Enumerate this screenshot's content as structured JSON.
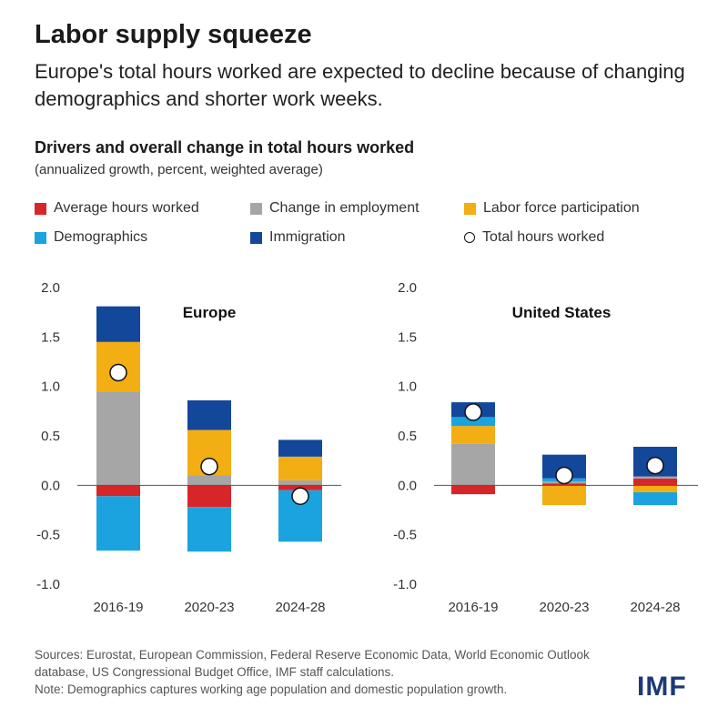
{
  "title": "Labor supply squeeze",
  "subtitle": "Europe's total hours worked are expected to decline because of changing demographics and shorter work weeks.",
  "chart_title": "Drivers and overall change in total hours worked",
  "chart_subtitle": "(annualized growth, percent, weighted average)",
  "legend": [
    {
      "label": "Average hours worked",
      "color": "#d7262a",
      "marker": "square"
    },
    {
      "label": "Change in employment",
      "color": "#a6a6a6",
      "marker": "square"
    },
    {
      "label": "Labor force participation",
      "color": "#f2ae13",
      "marker": "square"
    },
    {
      "label": "Demographics",
      "color": "#1ba3e0",
      "marker": "square"
    },
    {
      "label": "Immigration",
      "color": "#13479a",
      "marker": "square"
    },
    {
      "label": "Total hours worked",
      "color": "#ffffff",
      "marker": "circle"
    }
  ],
  "chart_data": [
    {
      "type": "bar",
      "stacked": true,
      "panel_label": "Europe",
      "categories": [
        "2016-19",
        "2020-23",
        "2024-28"
      ],
      "ylim": [
        -1.0,
        2.0
      ],
      "yticks": [
        "2.0",
        "1.5",
        "1.0",
        "0.5",
        "0.0",
        "-0.5",
        "-1.0"
      ],
      "series": [
        {
          "name": "Average hours worked",
          "color": "#d7262a",
          "values": [
            -0.11,
            -0.22,
            -0.05
          ]
        },
        {
          "name": "Change in employment",
          "color": "#a6a6a6",
          "values": [
            0.95,
            0.1,
            0.05
          ]
        },
        {
          "name": "Labor force participation",
          "color": "#f2ae13",
          "values": [
            0.5,
            0.46,
            0.24
          ]
        },
        {
          "name": "Demographics",
          "color": "#1ba3e0",
          "values": [
            -0.55,
            -0.45,
            -0.52
          ]
        },
        {
          "name": "Immigration",
          "color": "#13479a",
          "values": [
            0.36,
            0.3,
            0.17
          ]
        }
      ],
      "total": {
        "name": "Total hours worked",
        "values": [
          1.14,
          0.19,
          -0.11
        ]
      }
    },
    {
      "type": "bar",
      "stacked": true,
      "panel_label": "United States",
      "categories": [
        "2016-19",
        "2020-23",
        "2024-28"
      ],
      "ylim": [
        -1.0,
        2.0
      ],
      "yticks": [
        "2.0",
        "1.5",
        "1.0",
        "0.5",
        "0.0",
        "-0.5",
        "-1.0"
      ],
      "series": [
        {
          "name": "Average hours worked",
          "color": "#d7262a",
          "values": [
            -0.09,
            0.02,
            0.07
          ]
        },
        {
          "name": "Change in employment",
          "color": "#a6a6a6",
          "values": [
            0.42,
            0.02,
            0.02
          ]
        },
        {
          "name": "Labor force participation",
          "color": "#f2ae13",
          "values": [
            0.18,
            -0.2,
            -0.07
          ]
        },
        {
          "name": "Demographics",
          "color": "#1ba3e0",
          "values": [
            0.09,
            0.03,
            -0.13
          ]
        },
        {
          "name": "Immigration",
          "color": "#13479a",
          "values": [
            0.15,
            0.24,
            0.3
          ]
        }
      ],
      "total": {
        "name": "Total hours worked",
        "values": [
          0.74,
          0.1,
          0.2
        ]
      }
    }
  ],
  "footer": {
    "sources": "Sources: Eurostat, European Commission, Federal Reserve Economic Data, World Economic Outlook database, US Congressional Budget Office, IMF staff calculations.",
    "note": "Note: Demographics captures working age population and domestic population growth."
  },
  "logo": "IMF"
}
